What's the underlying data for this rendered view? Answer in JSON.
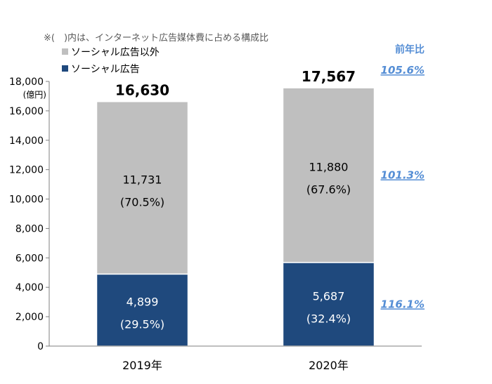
{
  "chart_data": {
    "type": "bar",
    "stacked": true,
    "note": "※(　)内は、インターネット広告媒体費に占める構成比",
    "unit_label": "(億円)",
    "categories": [
      "2019年",
      "2020年"
    ],
    "ylim": [
      0,
      18000
    ],
    "yticks": [
      "0",
      "2,000",
      "4,000",
      "6,000",
      "8,000",
      "10,000",
      "12,000",
      "14,000",
      "16,000",
      "18,000"
    ],
    "ytick_values": [
      0,
      2000,
      4000,
      6000,
      8000,
      10000,
      12000,
      14000,
      16000,
      18000
    ],
    "series": [
      {
        "name": "ソーシャル広告",
        "color": "#1f497d",
        "values": [
          4899,
          5687
        ],
        "value_labels": [
          "4,899",
          "5,687"
        ],
        "share_labels": [
          "(29.5%)",
          "(32.4%)"
        ]
      },
      {
        "name": "ソーシャル広告以外",
        "color": "#bfbfbf",
        "values": [
          11731,
          11880
        ],
        "value_labels": [
          "11,731",
          "11,880"
        ],
        "share_labels": [
          "(70.5%)",
          "(67.6%)"
        ]
      }
    ],
    "totals": [
      16630,
      17567
    ],
    "total_labels": [
      "16,630",
      "17,567"
    ],
    "yoy": {
      "header": "前年比",
      "total": "105.6%",
      "other": "101.3%",
      "social": "116.1%",
      "color": "#558ed5"
    },
    "grid": false,
    "legend_position": "top-left"
  }
}
